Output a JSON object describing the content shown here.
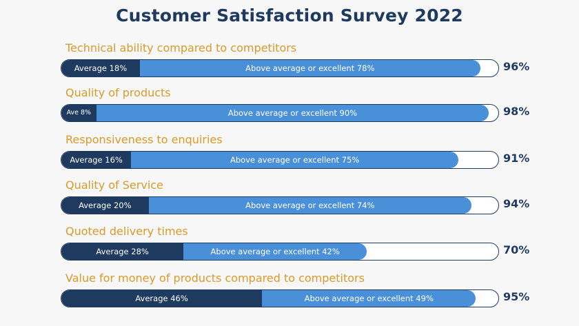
{
  "chart_data": {
    "type": "bar",
    "title": "Customer Satisfaction Survey 2022",
    "categories": [
      "Technical ability compared to competitors",
      "Quality of products",
      "Responsiveness to enquiries",
      "Quality of Service",
      "Quoted delivery times",
      "Value for money of products compared to competitors"
    ],
    "series": [
      {
        "name": "Average",
        "values": [
          18,
          8,
          16,
          20,
          28,
          46
        ]
      },
      {
        "name": "Above average or excellent",
        "values": [
          78,
          90,
          75,
          74,
          42,
          49
        ]
      }
    ],
    "segment_labels": [
      {
        "average": "Average 18%",
        "excellent": "Above average or excellent 78%"
      },
      {
        "average": "Ave 8%",
        "excellent": "Above average or excellent 90%"
      },
      {
        "average": "Average 16%",
        "excellent": "Above average or excellent 75%"
      },
      {
        "average": "Average 20%",
        "excellent": "Above average or excellent 74%"
      },
      {
        "average": "Average 28%",
        "excellent": "Above average or excellent 42%"
      },
      {
        "average": "Average 46%",
        "excellent": "Above average or excellent 49%"
      }
    ],
    "totals": [
      "96%",
      "98%",
      "91%",
      "94%",
      "70%",
      "95%"
    ],
    "ylim": [
      0,
      100
    ],
    "colors": {
      "average": "#1f3a5f",
      "excellent": "#4a90d9",
      "label": "#d99a2b",
      "title": "#1f3a5f"
    }
  }
}
